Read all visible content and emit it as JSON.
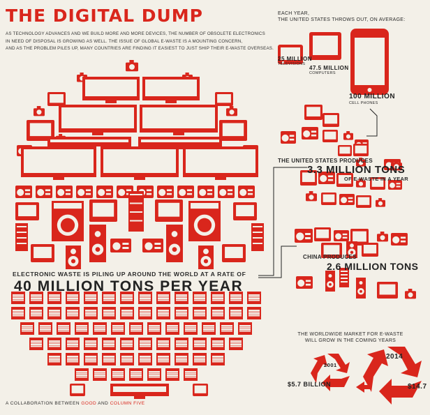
{
  "title": "THE DIGITAL DUMP",
  "intro": {
    "line1": "AS TECHNOLOGY ADVANCES AND WE BUILD MORE AND MORE DEVICES, THE NUMBER OF OBSOLETE ELECTRONICS",
    "line2": "IN NEED OF DISPOSAL IS GROWING AS WELL. THE ISSUE OF GLOBAL E-WASTE IS A MOUNTING CONCERN,",
    "line3": "AND AS THE PROBLEM PILES UP, MANY COUNTRIES ARE FINDING IT EASIEST TO JUST SHIP THEIR E-WASTE OVERSEAS."
  },
  "us_average": {
    "heading_line1": "EACH YEAR,",
    "heading_line2": "THE UNITED STATES THROWS OUT, ON AVERAGE:",
    "televisions_value": "25 MILLION",
    "televisions_label": "TELEVISIONS",
    "computers_value": "47.5 MILLION",
    "computers_label": "COMPUTERS",
    "cellphones_value": "100 MILLION",
    "cellphones_label": "CELL PHONES"
  },
  "us_produces": {
    "line1": "THE UNITED STATES PRODUCES",
    "value": "3.3 MILLION TONS",
    "line2": "OF E-WASTE IN A YEAR"
  },
  "china": {
    "line1": "CHINA PRODUCES",
    "value": "2.6 MILLION TONS"
  },
  "world": {
    "line1": "ELECTRONIC WASTE IS PILING UP AROUND THE WORLD AT A RATE OF",
    "value": "40 MILLION TONS PER YEAR"
  },
  "market": {
    "line1": "THE WORLDWIDE MARKET FOR E-WASTE",
    "line2": "WILL GROW IN THE COMING YEARS",
    "year_a": "2001",
    "value_a": "$5.7 BILLION",
    "year_b": "2014",
    "value_b": "$14.7"
  },
  "footer": {
    "prefix": "A COLLABORATION BETWEEN",
    "partner_a": "GOOD",
    "and": "AND",
    "partner_b": "COLUMN FIVE"
  },
  "colors": {
    "accent": "#d9261c",
    "background": "#f3f0e8",
    "text": "#2b2b2b"
  }
}
